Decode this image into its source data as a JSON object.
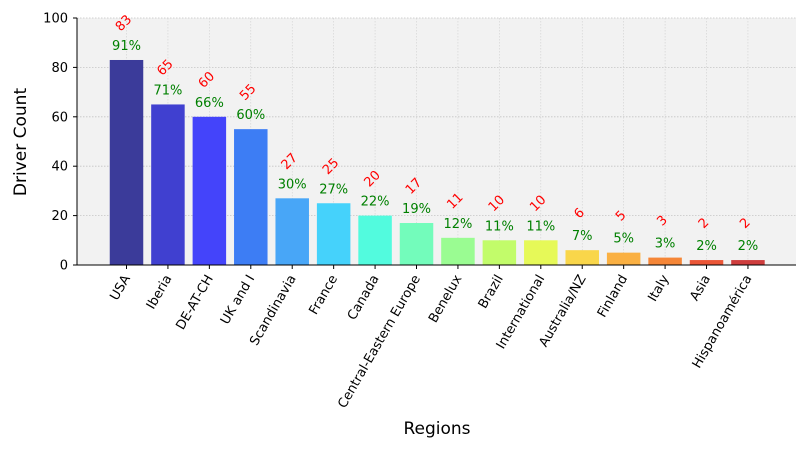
{
  "chart_data": {
    "type": "bar",
    "title": "",
    "xlabel": "Regions",
    "ylabel": "Driver Count",
    "ylim": [
      0,
      100
    ],
    "yticks": [
      0,
      20,
      40,
      60,
      80,
      100
    ],
    "grid": true,
    "categories": [
      "USA",
      "Iberia",
      "DE-AT-CH",
      "UK and I",
      "Scandinavia",
      "France",
      "Canada",
      "Central-Eastern Europe",
      "Benelux",
      "Brazil",
      "International",
      "Australia/NZ",
      "Finland",
      "Italy",
      "Asia",
      "Hispanoamérica"
    ],
    "values": [
      83,
      65,
      60,
      55,
      27,
      25,
      20,
      17,
      11,
      10,
      10,
      6,
      5,
      3,
      2,
      2
    ],
    "count_labels": [
      "83",
      "65",
      "60",
      "55",
      "27",
      "25",
      "20",
      "17",
      "11",
      "10",
      "10",
      "6",
      "5",
      "3",
      "2",
      "2"
    ],
    "percent_labels": [
      "91%",
      "71%",
      "66%",
      "60%",
      "30%",
      "27%",
      "22%",
      "19%",
      "12%",
      "11%",
      "11%",
      "7%",
      "5%",
      "3%",
      "2%",
      "2%"
    ],
    "bar_colors": [
      "#3b3b9a",
      "#4040d0",
      "#4444fa",
      "#3d7df4",
      "#48a6f7",
      "#45d2fb",
      "#52fbde",
      "#73fcbb",
      "#9afc92",
      "#c2fc6a",
      "#e6f958",
      "#f9d64a",
      "#fab042",
      "#f58637",
      "#eb5637",
      "#ce3d3d"
    ],
    "colors": {
      "count": "#ff0000",
      "percent": "#008000",
      "plot_bg": "#f2f2f2"
    }
  }
}
